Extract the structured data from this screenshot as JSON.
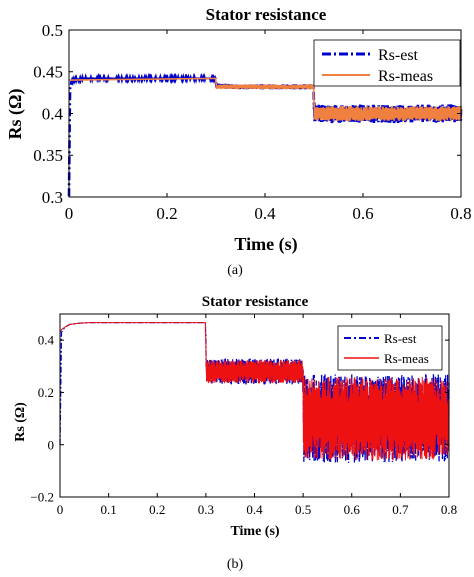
{
  "chart_data": [
    {
      "type": "line",
      "title": "Stator resistance",
      "xlabel": "Time (s)",
      "ylabel": "Rs (Ω)",
      "caption": "(a)",
      "xlim": [
        0,
        0.8
      ],
      "ylim": [
        0.3,
        0.5
      ],
      "xticks": [
        0,
        0.2,
        0.4,
        0.6,
        0.8
      ],
      "yticks": [
        0.3,
        0.35,
        0.4,
        0.45,
        0.5
      ],
      "xtick_labels": [
        "0",
        "0.2",
        "0.4",
        "0.6",
        "0.8"
      ],
      "ytick_labels": [
        "0.3",
        "0.35",
        "0.4",
        "0.45",
        "0.5"
      ],
      "grid": false,
      "legend_position": "top-right",
      "series": [
        {
          "name": "Rs-est",
          "color": "#0000cc",
          "style": "dash-dot",
          "x": [
            0,
            0.002,
            0.005,
            0.01,
            0.02,
            0.03,
            0.05,
            0.1,
            0.2,
            0.299,
            0.301,
            0.35,
            0.4,
            0.45,
            0.499,
            0.501,
            0.55,
            0.6,
            0.65,
            0.7,
            0.75,
            0.8
          ],
          "y": [
            0.3,
            0.43,
            0.437,
            0.44,
            0.441,
            0.442,
            0.442,
            0.442,
            0.442,
            0.442,
            0.433,
            0.432,
            0.432,
            0.432,
            0.432,
            0.4,
            0.399,
            0.4,
            0.399,
            0.4,
            0.4,
            0.4
          ],
          "oscillation_by_segment": [
            0.001,
            0.003,
            0.011
          ]
        },
        {
          "name": "Rs-meas",
          "color": "#f08040",
          "style": "solid",
          "x": [
            0,
            0.299,
            0.301,
            0.499,
            0.501,
            0.8
          ],
          "y": [
            0.44,
            0.442,
            0.432,
            0.432,
            0.4,
            0.4
          ],
          "oscillation_by_segment": [
            0.0,
            0.003,
            0.009
          ]
        }
      ]
    },
    {
      "type": "line",
      "title": "Stator resistance",
      "xlabel": "Time (s)",
      "ylabel": "Rs (Ω)",
      "caption": "(b)",
      "xlim": [
        0,
        0.8
      ],
      "ylim": [
        -0.2,
        0.5
      ],
      "xticks": [
        0,
        0.1,
        0.2,
        0.3,
        0.4,
        0.5,
        0.6,
        0.7,
        0.8
      ],
      "yticks": [
        -0.2,
        0,
        0.2,
        0.4
      ],
      "xtick_labels": [
        "0",
        "0.1",
        "0.2",
        "0.3",
        "0.4",
        "0.5",
        "0.6",
        "0.7",
        "0.8"
      ],
      "ytick_labels": [
        "−0.2",
        "0",
        "0.2",
        "0.4"
      ],
      "grid": false,
      "legend_position": "top-right",
      "series": [
        {
          "name": "Rs-est",
          "color": "#0000cc",
          "style": "dash-dot",
          "x": [
            0,
            0.003,
            0.01,
            0.02,
            0.04,
            0.06,
            0.1,
            0.2,
            0.299,
            0.301,
            0.35,
            0.4,
            0.45,
            0.499,
            0.501,
            0.55,
            0.6,
            0.65,
            0.7,
            0.75,
            0.8
          ],
          "y": [
            0,
            0.43,
            0.45,
            0.46,
            0.465,
            0.467,
            0.467,
            0.467,
            0.467,
            0.28,
            0.28,
            0.28,
            0.28,
            0.28,
            0.1,
            0.1,
            0.1,
            0.1,
            0.1,
            0.1,
            0.1
          ],
          "oscillation_by_segment": [
            0.0,
            0.05,
            0.17
          ]
        },
        {
          "name": "Rs-meas",
          "color": "#ee1111",
          "style": "solid",
          "x": [
            0,
            0.003,
            0.01,
            0.02,
            0.04,
            0.06,
            0.1,
            0.2,
            0.299,
            0.301,
            0.35,
            0.4,
            0.45,
            0.499,
            0.501,
            0.55,
            0.6,
            0.65,
            0.7,
            0.75,
            0.8
          ],
          "y": [
            0.43,
            0.44,
            0.45,
            0.46,
            0.465,
            0.467,
            0.467,
            0.467,
            0.467,
            0.28,
            0.28,
            0.28,
            0.28,
            0.28,
            0.1,
            0.1,
            0.1,
            0.1,
            0.1,
            0.1,
            0.1
          ],
          "oscillation_by_segment": [
            0.0,
            0.045,
            0.16
          ]
        }
      ]
    }
  ]
}
